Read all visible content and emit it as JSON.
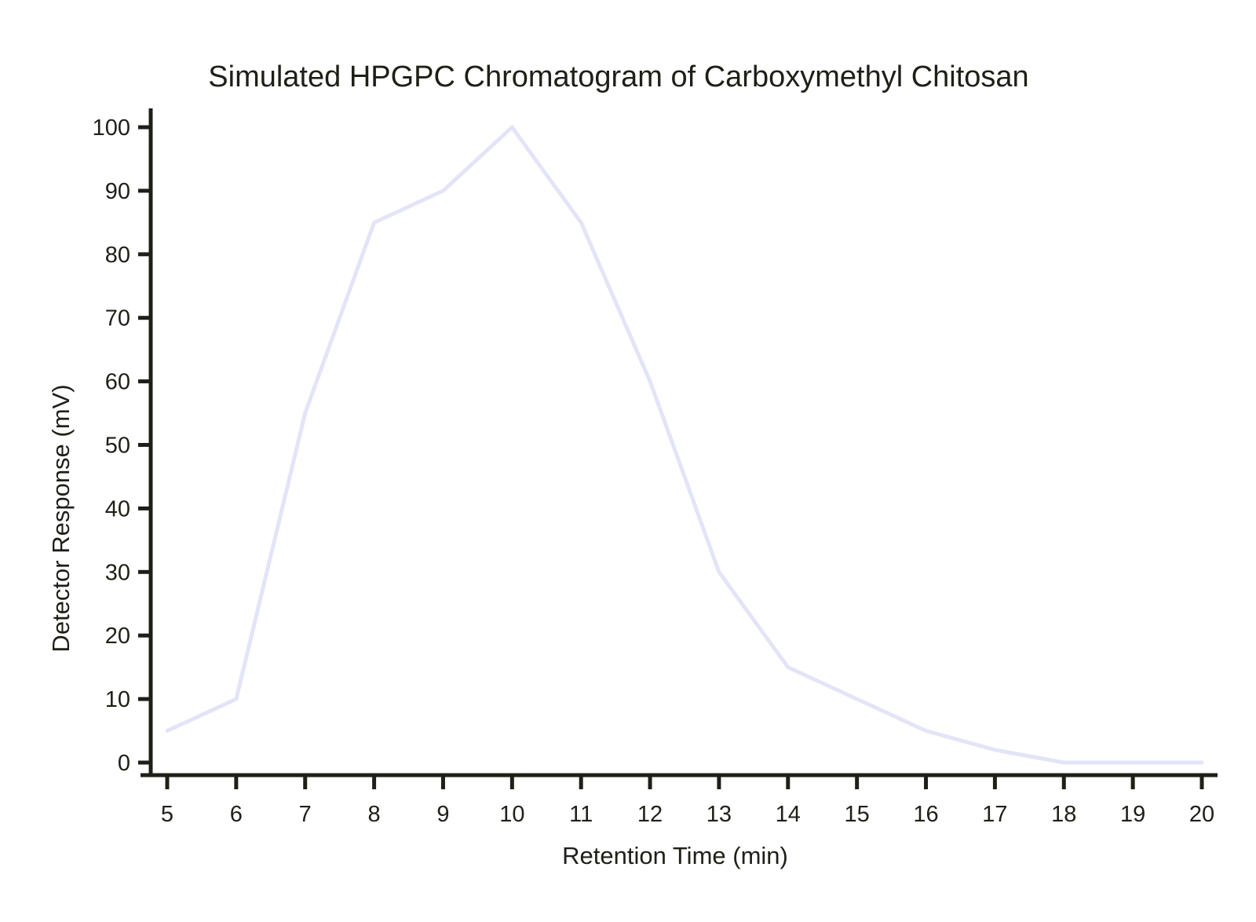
{
  "chart_data": {
    "type": "line",
    "title": "Simulated HPGPC Chromatogram of Carboxymethyl Chitosan",
    "xlabel": "Retention Time (min)",
    "ylabel": "Detector Response (mV)",
    "x": [
      5,
      6,
      7,
      8,
      9,
      10,
      11,
      12,
      13,
      14,
      15,
      16,
      17,
      18,
      19,
      20
    ],
    "y": [
      5,
      10,
      55,
      85,
      90,
      100,
      85,
      60,
      30,
      15,
      10,
      5,
      2,
      0,
      0,
      0
    ],
    "series": [
      {
        "name": "Detector Response",
        "values": [
          5,
          10,
          55,
          85,
          90,
          100,
          85,
          60,
          30,
          15,
          10,
          5,
          2,
          0,
          0,
          0
        ]
      }
    ],
    "xlim": [
      5,
      20
    ],
    "ylim": [
      0,
      100
    ],
    "x_ticks": [
      5,
      6,
      7,
      8,
      9,
      10,
      11,
      12,
      13,
      14,
      15,
      16,
      17,
      18,
      19,
      20
    ],
    "y_ticks": [
      0,
      10,
      20,
      30,
      40,
      50,
      60,
      70,
      80,
      90,
      100
    ],
    "grid": false,
    "legend_position": "none",
    "peak": {
      "x": 10,
      "y": 100
    },
    "colors": {
      "line": "#e4e4f8",
      "axis": "#1f1f17",
      "text": "#1f1f17",
      "background": "#ffffff"
    }
  }
}
